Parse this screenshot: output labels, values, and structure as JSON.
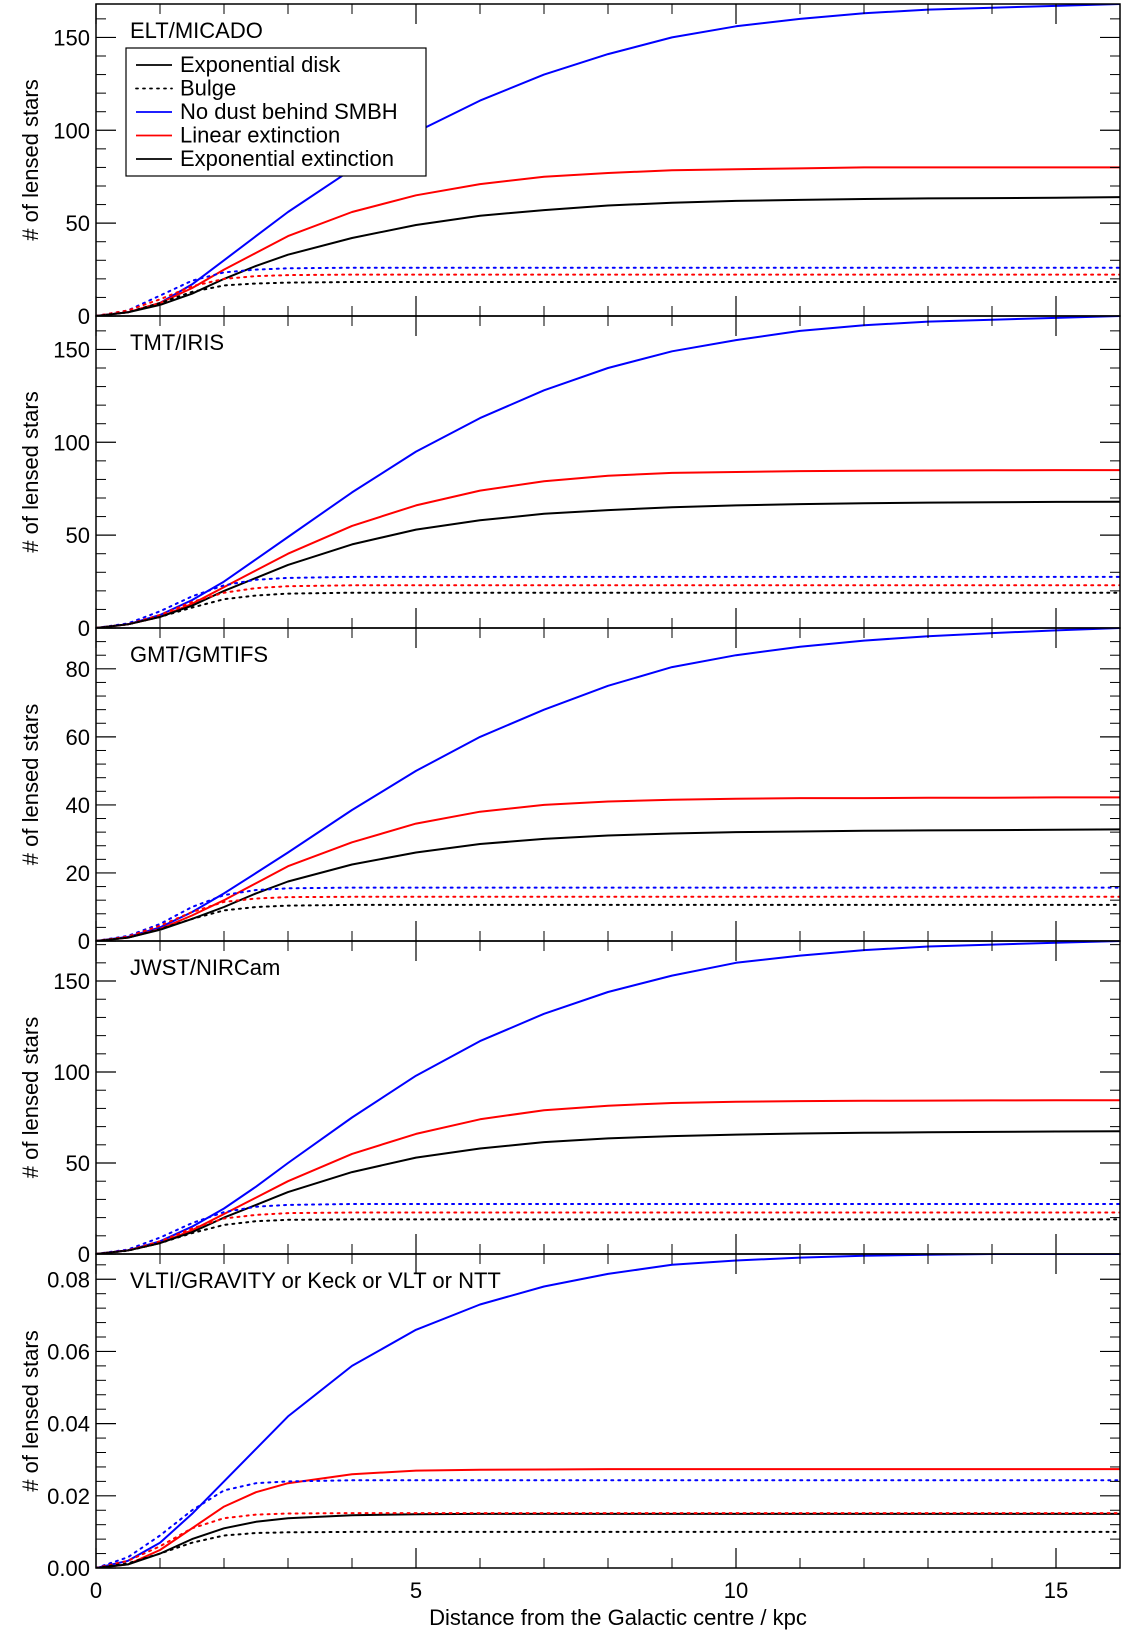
{
  "figure": {
    "xlabel": "Distance from the Galactic centre / kpc",
    "ylabel": "# of lensed stars",
    "xlim": [
      0,
      16
    ],
    "xticks": [
      0,
      5,
      10,
      15
    ],
    "legend": {
      "placement": "top-left of first panel",
      "entries": [
        {
          "label": "Exponential disk",
          "style": "solid",
          "color": "#000000"
        },
        {
          "label": "Bulge",
          "style": "dotted",
          "color": "#000000"
        },
        {
          "label": "No dust behind SMBH",
          "style": "solid",
          "color": "#0000ff"
        },
        {
          "label": "Linear extinction",
          "style": "solid",
          "color": "#ff0000"
        },
        {
          "label": "Exponential extinction",
          "style": "solid",
          "color": "#000000"
        }
      ]
    }
  },
  "colors": {
    "no_dust": "#0000ff",
    "linear": "#ff0000",
    "exponential": "#000000"
  },
  "chart_data": [
    {
      "type": "line",
      "title": "ELT/MICADO",
      "ylim": [
        0,
        168
      ],
      "yticks": [
        0,
        50,
        100,
        150
      ],
      "ytick_labels": [
        "0",
        "50",
        "100",
        "150"
      ],
      "x": [
        0,
        0.5,
        1,
        1.5,
        2,
        2.5,
        3,
        4,
        5,
        6,
        7,
        8,
        9,
        10,
        11,
        12,
        13,
        14,
        15,
        16
      ],
      "series": [
        {
          "component": "disk",
          "extinction": "no_dust",
          "values": [
            0,
            2,
            7,
            17,
            30,
            43,
            56,
            79,
            99,
            116,
            130,
            141,
            150,
            156,
            160,
            163,
            165,
            166,
            167,
            168
          ]
        },
        {
          "component": "disk",
          "extinction": "linear",
          "values": [
            0,
            2,
            7,
            15,
            25,
            34,
            43,
            56,
            65,
            71,
            75,
            77,
            78.5,
            79,
            79.5,
            80,
            80,
            80,
            80,
            80
          ]
        },
        {
          "component": "disk",
          "extinction": "exponential",
          "values": [
            0,
            2,
            6,
            12,
            20,
            27,
            33,
            42,
            49,
            54,
            57,
            59.5,
            61,
            62,
            62.5,
            63,
            63.3,
            63.5,
            63.7,
            64
          ]
        },
        {
          "component": "bulge",
          "extinction": "no_dust",
          "values": [
            0,
            3,
            11,
            19,
            23.5,
            25,
            25.7,
            26,
            26,
            26,
            26,
            26,
            26,
            26,
            26,
            26,
            26,
            26,
            26,
            26
          ]
        },
        {
          "component": "bulge",
          "extinction": "linear",
          "values": [
            0,
            3,
            9,
            16,
            20,
            21.5,
            22,
            22.3,
            22.3,
            22.3,
            22.3,
            22.3,
            22.3,
            22.3,
            22.3,
            22.3,
            22.3,
            22.3,
            22.3,
            22.3
          ]
        },
        {
          "component": "bulge",
          "extinction": "exponential",
          "values": [
            0,
            2,
            7,
            13,
            16.5,
            17.5,
            18,
            18.3,
            18.3,
            18.3,
            18.3,
            18.3,
            18.3,
            18.3,
            18.3,
            18.3,
            18.3,
            18.3,
            18.3,
            18.3
          ]
        }
      ]
    },
    {
      "type": "line",
      "title": "TMT/IRIS",
      "ylim": [
        0,
        168
      ],
      "yticks": [
        0,
        50,
        100,
        150
      ],
      "ytick_labels": [
        "0",
        "50",
        "100",
        "150"
      ],
      "x": [
        0,
        0.5,
        1,
        1.5,
        2,
        2.5,
        3,
        4,
        5,
        6,
        7,
        8,
        9,
        10,
        11,
        12,
        13,
        14,
        15,
        16
      ],
      "series": [
        {
          "component": "disk",
          "extinction": "no_dust",
          "values": [
            0,
            2,
            7,
            15,
            25,
            37,
            49,
            73,
            95,
            113,
            128,
            140,
            149,
            155,
            160,
            163,
            165,
            166,
            167,
            168
          ]
        },
        {
          "component": "disk",
          "extinction": "linear",
          "values": [
            0,
            2,
            6,
            13,
            22,
            31,
            40,
            55,
            66,
            74,
            79,
            82,
            83.5,
            84,
            84.5,
            84.7,
            84.8,
            84.9,
            85,
            85
          ]
        },
        {
          "component": "disk",
          "extinction": "exponential",
          "values": [
            0,
            2,
            6,
            12,
            20,
            27,
            34,
            45,
            53,
            58,
            61.5,
            63.5,
            65,
            66,
            66.7,
            67.2,
            67.5,
            67.7,
            67.9,
            68
          ]
        },
        {
          "component": "bulge",
          "extinction": "no_dust",
          "values": [
            0,
            2.5,
            9,
            17,
            23,
            26,
            27,
            27.5,
            27.5,
            27.5,
            27.5,
            27.5,
            27.5,
            27.5,
            27.5,
            27.5,
            27.5,
            27.5,
            27.5,
            27.5
          ]
        },
        {
          "component": "bulge",
          "extinction": "linear",
          "values": [
            0,
            2,
            7,
            14,
            19,
            21.5,
            22.5,
            23,
            23,
            23,
            23,
            23,
            23,
            23,
            23,
            23,
            23,
            23,
            23,
            23
          ]
        },
        {
          "component": "bulge",
          "extinction": "exponential",
          "values": [
            0,
            2,
            6,
            11,
            15.5,
            17.5,
            18.5,
            19,
            19,
            19,
            19,
            19,
            19,
            19,
            19,
            19,
            19,
            19,
            19,
            19
          ]
        }
      ]
    },
    {
      "type": "line",
      "title": "GMT/GMTIFS",
      "ylim": [
        0,
        92
      ],
      "yticks": [
        0,
        20,
        40,
        60,
        80
      ],
      "ytick_labels": [
        "0",
        "20",
        "40",
        "60",
        "80"
      ],
      "x": [
        0,
        0.5,
        1,
        1.5,
        2,
        2.5,
        3,
        4,
        5,
        6,
        7,
        8,
        9,
        10,
        11,
        12,
        13,
        14,
        15,
        16
      ],
      "series": [
        {
          "component": "disk",
          "extinction": "no_dust",
          "values": [
            0,
            1.2,
            4,
            8.5,
            14,
            20,
            26,
            38.5,
            50,
            60,
            68,
            75,
            80.5,
            84,
            86.5,
            88.3,
            89.6,
            90.5,
            91.3,
            92
          ]
        },
        {
          "component": "disk",
          "extinction": "linear",
          "values": [
            0,
            1,
            3.5,
            7.5,
            12,
            17,
            22,
            29,
            34.5,
            38,
            40,
            41,
            41.5,
            41.8,
            42,
            42,
            42.1,
            42.1,
            42.2,
            42.2
          ]
        },
        {
          "component": "disk",
          "extinction": "exponential",
          "values": [
            0,
            1,
            3.3,
            6.5,
            10,
            14,
            17.5,
            22.5,
            26,
            28.5,
            30,
            31,
            31.6,
            32,
            32.2,
            32.4,
            32.5,
            32.6,
            32.7,
            32.8
          ]
        },
        {
          "component": "bulge",
          "extinction": "no_dust",
          "values": [
            0,
            1.5,
            5,
            10,
            13.5,
            15,
            15.5,
            15.7,
            15.7,
            15.7,
            15.7,
            15.7,
            15.7,
            15.7,
            15.7,
            15.7,
            15.7,
            15.7,
            15.7,
            15.7
          ]
        },
        {
          "component": "bulge",
          "extinction": "linear",
          "values": [
            0,
            1.3,
            4.5,
            8.5,
            11.5,
            12.5,
            12.9,
            13,
            13,
            13,
            13,
            13,
            13,
            13,
            13,
            13,
            13,
            13,
            13,
            13
          ]
        },
        {
          "component": "bulge",
          "extinction": "exponential",
          "values": [
            0,
            1,
            3.5,
            6.5,
            9,
            10,
            10.4,
            10.6,
            10.6,
            10.6,
            10.6,
            10.6,
            10.6,
            10.6,
            10.6,
            10.6,
            10.6,
            10.6,
            10.6,
            10.6
          ]
        }
      ]
    },
    {
      "type": "line",
      "title": "JWST/NIRCam",
      "ylim": [
        0,
        172
      ],
      "yticks": [
        0,
        50,
        100,
        150
      ],
      "ytick_labels": [
        "0",
        "50",
        "100",
        "150"
      ],
      "x": [
        0,
        0.5,
        1,
        1.5,
        2,
        2.5,
        3,
        4,
        5,
        6,
        7,
        8,
        9,
        10,
        11,
        12,
        13,
        14,
        15,
        16
      ],
      "series": [
        {
          "component": "disk",
          "extinction": "no_dust",
          "values": [
            0,
            2,
            7,
            15,
            25,
            37,
            50,
            75,
            98,
            117,
            132,
            144,
            153,
            160,
            164,
            167,
            169,
            170,
            171,
            172
          ]
        },
        {
          "component": "disk",
          "extinction": "linear",
          "values": [
            0,
            2,
            6,
            13,
            22,
            31,
            40,
            55,
            66,
            74,
            79,
            81.5,
            83,
            83.7,
            84,
            84.2,
            84.3,
            84.4,
            84.5,
            84.5
          ]
        },
        {
          "component": "disk",
          "extinction": "exponential",
          "values": [
            0,
            2,
            6,
            12,
            20,
            27,
            34,
            45,
            53,
            58,
            61.5,
            63.5,
            64.8,
            65.6,
            66.2,
            66.6,
            66.9,
            67.1,
            67.3,
            67.5
          ]
        },
        {
          "component": "bulge",
          "extinction": "no_dust",
          "values": [
            0,
            2.5,
            9,
            17,
            23,
            26,
            27,
            27.5,
            27.5,
            27.5,
            27.5,
            27.5,
            27.5,
            27.5,
            27.5,
            27.5,
            27.5,
            27.5,
            27.5,
            27.5
          ]
        },
        {
          "component": "bulge",
          "extinction": "linear",
          "values": [
            0,
            2,
            7,
            14,
            19.5,
            21.5,
            22.5,
            22.8,
            22.8,
            22.8,
            22.8,
            22.8,
            22.8,
            22.8,
            22.8,
            22.8,
            22.8,
            22.8,
            22.8,
            22.8
          ]
        },
        {
          "component": "bulge",
          "extinction": "exponential",
          "values": [
            0,
            1.8,
            6,
            11.5,
            16,
            18,
            18.8,
            19,
            19,
            19,
            19,
            19,
            19,
            19,
            19,
            19,
            19,
            19,
            19,
            19
          ]
        }
      ]
    },
    {
      "type": "line",
      "title": "VLTI/GRAVITY or Keck or VLT or NTT",
      "ylim": [
        0,
        0.087
      ],
      "yticks": [
        0,
        0.02,
        0.04,
        0.06,
        0.08
      ],
      "ytick_labels": [
        "0.00",
        "0.02",
        "0.04",
        "0.06",
        "0.08"
      ],
      "x": [
        0,
        0.5,
        1,
        1.5,
        2,
        2.5,
        3,
        4,
        5,
        6,
        7,
        8,
        9,
        10,
        11,
        12,
        13,
        14,
        15,
        16
      ],
      "series": [
        {
          "component": "disk",
          "extinction": "no_dust",
          "values": [
            0,
            0.002,
            0.007,
            0.015,
            0.024,
            0.033,
            0.042,
            0.056,
            0.066,
            0.073,
            0.078,
            0.0815,
            0.084,
            0.0852,
            0.086,
            0.0865,
            0.0868,
            0.087,
            0.087,
            0.087
          ]
        },
        {
          "component": "disk",
          "extinction": "linear",
          "values": [
            0,
            0.001,
            0.005,
            0.011,
            0.017,
            0.021,
            0.0235,
            0.026,
            0.027,
            0.0272,
            0.0273,
            0.0274,
            0.0274,
            0.0274,
            0.0274,
            0.0274,
            0.0274,
            0.0274,
            0.0274,
            0.0274
          ]
        },
        {
          "component": "disk",
          "extinction": "exponential",
          "values": [
            0,
            0.001,
            0.004,
            0.008,
            0.011,
            0.0128,
            0.0138,
            0.0146,
            0.0149,
            0.015,
            0.015,
            0.015,
            0.015,
            0.015,
            0.015,
            0.015,
            0.015,
            0.015,
            0.015,
            0.015
          ]
        },
        {
          "component": "bulge",
          "extinction": "no_dust",
          "values": [
            0,
            0.003,
            0.009,
            0.016,
            0.0215,
            0.0235,
            0.024,
            0.0243,
            0.0243,
            0.0243,
            0.0243,
            0.0243,
            0.0243,
            0.0243,
            0.0243,
            0.0243,
            0.0243,
            0.0243,
            0.0243,
            0.0243
          ]
        },
        {
          "component": "bulge",
          "extinction": "linear",
          "values": [
            0,
            0.002,
            0.006,
            0.011,
            0.0138,
            0.0148,
            0.0151,
            0.0152,
            0.0152,
            0.0152,
            0.0152,
            0.0152,
            0.0152,
            0.0152,
            0.0152,
            0.0152,
            0.0152,
            0.0152,
            0.0152,
            0.0152
          ]
        },
        {
          "component": "bulge",
          "extinction": "exponential",
          "values": [
            0,
            0.0013,
            0.004,
            0.007,
            0.009,
            0.0097,
            0.0099,
            0.01,
            0.01,
            0.01,
            0.01,
            0.01,
            0.01,
            0.01,
            0.01,
            0.01,
            0.01,
            0.01,
            0.01,
            0.01
          ]
        }
      ]
    }
  ]
}
